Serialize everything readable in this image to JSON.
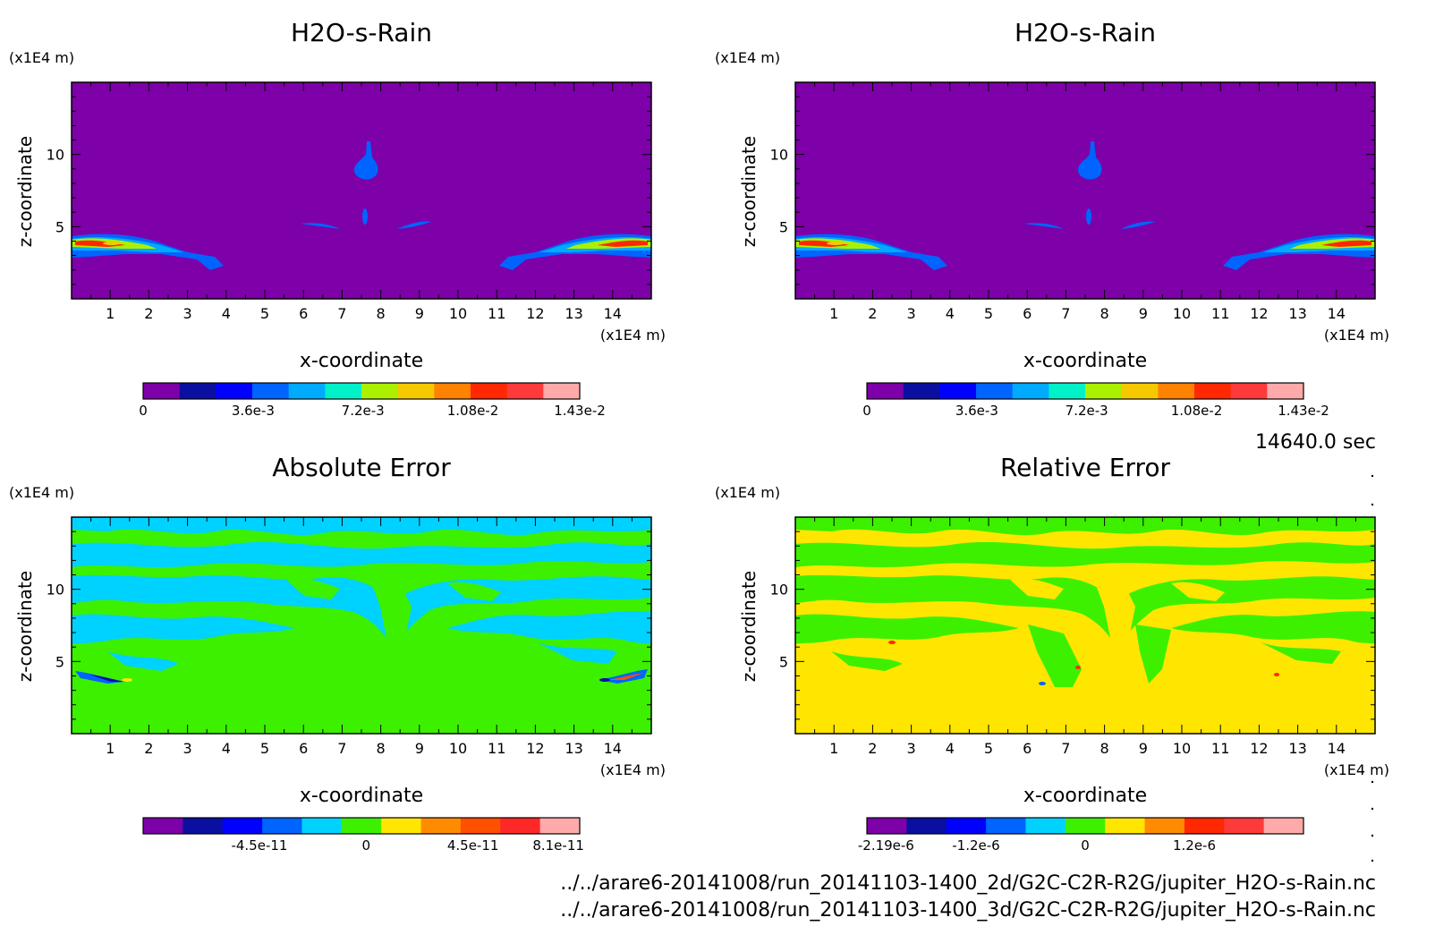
{
  "time_label": "14640.0 sec",
  "file_paths": [
    "../../arare6-20141008/run_20141103-1400_2d/G2C-C2R-R2G/jupiter_H2O-s-Rain.nc",
    "../../arare6-20141008/run_20141103-1400_3d/G2C-C2R-R2G/jupiter_H2O-s-Rain.nc"
  ],
  "chart_data": [
    {
      "type": "heatmap",
      "title": "H2O-s-Rain",
      "xlabel": "x-coordinate",
      "ylabel": "z-coordinate",
      "x_unit": "(x1E4 m)",
      "y_unit": "(x1E4 m)",
      "xlim": [
        0,
        15
      ],
      "ylim": [
        0,
        15
      ],
      "x_ticks": [
        1,
        2,
        3,
        4,
        5,
        6,
        7,
        8,
        9,
        10,
        11,
        12,
        13,
        14
      ],
      "y_ticks": [
        5,
        10
      ],
      "background": "#7d00a8",
      "colorbar": {
        "colors": [
          "#7d00a8",
          "#0a0fa0",
          "#0000ff",
          "#0064ff",
          "#00aaff",
          "#00f0c8",
          "#aaf000",
          "#f5c800",
          "#ff8200",
          "#ff2800",
          "#ff3a3a",
          "#ffaaaa"
        ],
        "ticks": [
          {
            "value": 0,
            "label": "0"
          },
          {
            "value": 0.0036,
            "label": "3.6e-3"
          },
          {
            "value": 0.0072,
            "label": "7.2e-3"
          },
          {
            "value": 0.0108,
            "label": "1.08e-2"
          },
          {
            "value": 0.0143,
            "label": "1.43e-2"
          }
        ],
        "range": [
          0,
          0.0143
        ]
      }
    },
    {
      "type": "heatmap",
      "title": "H2O-s-Rain",
      "xlabel": "x-coordinate",
      "ylabel": "z-coordinate",
      "x_unit": "(x1E4 m)",
      "y_unit": "(x1E4 m)",
      "xlim": [
        0,
        15
      ],
      "ylim": [
        0,
        15
      ],
      "x_ticks": [
        1,
        2,
        3,
        4,
        5,
        6,
        7,
        8,
        9,
        10,
        11,
        12,
        13,
        14
      ],
      "y_ticks": [
        5,
        10
      ],
      "background": "#7d00a8",
      "colorbar": {
        "colors": [
          "#7d00a8",
          "#0a0fa0",
          "#0000ff",
          "#0064ff",
          "#00aaff",
          "#00f0c8",
          "#aaf000",
          "#f5c800",
          "#ff8200",
          "#ff2800",
          "#ff3a3a",
          "#ffaaaa"
        ],
        "ticks": [
          {
            "value": 0,
            "label": "0"
          },
          {
            "value": 0.0036,
            "label": "3.6e-3"
          },
          {
            "value": 0.0072,
            "label": "7.2e-3"
          },
          {
            "value": 0.0108,
            "label": "1.08e-2"
          },
          {
            "value": 0.0143,
            "label": "1.43e-2"
          }
        ],
        "range": [
          0,
          0.0143
        ]
      }
    },
    {
      "type": "heatmap",
      "title": "Absolute Error",
      "xlabel": "x-coordinate",
      "ylabel": "z-coordinate",
      "x_unit": "(x1E4 m)",
      "y_unit": "(x1E4 m)",
      "xlim": [
        0,
        15
      ],
      "ylim": [
        0,
        15
      ],
      "x_ticks": [
        1,
        2,
        3,
        4,
        5,
        6,
        7,
        8,
        9,
        10,
        11,
        12,
        13,
        14
      ],
      "y_ticks": [
        5,
        10
      ],
      "background": "#3cf000",
      "colorbar": {
        "colors": [
          "#7d00a8",
          "#0a0fa0",
          "#0000ff",
          "#0064ff",
          "#00d2ff",
          "#3cf000",
          "#ffe600",
          "#ff8c00",
          "#ff5000",
          "#ff2828",
          "#ffaaaa"
        ],
        "ticks": [
          {
            "value": -4.5e-11,
            "label": "-4.5e-11"
          },
          {
            "value": 0,
            "label": "0"
          },
          {
            "value": 4.5e-11,
            "label": "4.5e-11"
          },
          {
            "value": 8.1e-11,
            "label": "8.1e-11"
          }
        ],
        "range": [
          -9.4e-11,
          9e-11
        ]
      }
    },
    {
      "type": "heatmap",
      "title": "Relative Error",
      "xlabel": "x-coordinate",
      "ylabel": "z-coordinate",
      "x_unit": "(x1E4 m)",
      "y_unit": "(x1E4 m)",
      "xlim": [
        0,
        15
      ],
      "ylim": [
        0,
        15
      ],
      "x_ticks": [
        1,
        2,
        3,
        4,
        5,
        6,
        7,
        8,
        9,
        10,
        11,
        12,
        13,
        14
      ],
      "y_ticks": [
        5,
        10
      ],
      "background": "#ffe600",
      "colorbar": {
        "colors": [
          "#7d00a8",
          "#0a0fa0",
          "#0000ff",
          "#0064ff",
          "#00d2ff",
          "#3cf000",
          "#ffe600",
          "#ff8c00",
          "#ff2800",
          "#ff3a3a",
          "#ffaaaa"
        ],
        "ticks": [
          {
            "value": -2.19e-06,
            "label": "-2.19e-6"
          },
          {
            "value": -1.2e-06,
            "label": "-1.2e-6"
          },
          {
            "value": 0,
            "label": "0"
          },
          {
            "value": 1.2e-06,
            "label": "1.2e-6"
          }
        ],
        "range": [
          -2.4e-06,
          2.4e-06
        ]
      }
    }
  ]
}
